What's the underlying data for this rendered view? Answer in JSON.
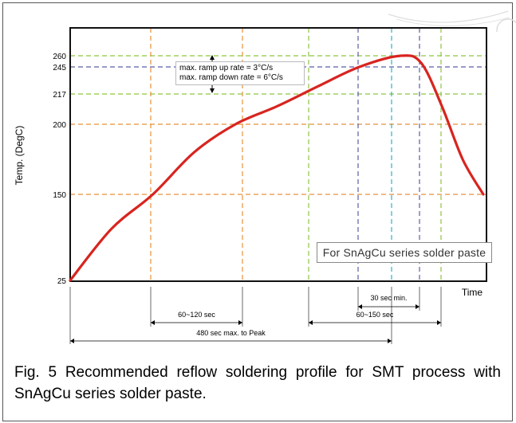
{
  "chart_data": {
    "type": "line",
    "ylabel": "Temp. (DegC)",
    "xlabel": "Time",
    "yticks": [
      25,
      150,
      200,
      217,
      245,
      260
    ],
    "ylim": [
      25,
      265
    ],
    "grid": true,
    "series": [
      {
        "values": [
          {
            "t": 0,
            "temp": 25
          },
          {
            "t": 60,
            "temp": 100
          },
          {
            "t": 120,
            "temp": 150
          },
          {
            "t": 180,
            "temp": 180
          },
          {
            "t": 240,
            "temp": 200
          },
          {
            "t": 300,
            "temp": 210
          },
          {
            "t": 360,
            "temp": 225
          },
          {
            "t": 420,
            "temp": 245
          },
          {
            "t": 480,
            "temp": 260
          },
          {
            "t": 510,
            "temp": 250
          },
          {
            "t": 540,
            "temp": 210
          },
          {
            "t": 570,
            "temp": 175
          },
          {
            "t": 600,
            "temp": 150
          }
        ]
      }
    ],
    "annotations": {
      "ramp_up": "max. ramp up rate = 3°C/s",
      "ramp_down": "max. ramp down rate = 6°C/s",
      "series_note": "For SnAgCu series solder paste",
      "interval_60_120": "60~120 sec",
      "interval_60_150": "60~150 sec",
      "interval_30": "30 sec min.",
      "interval_480": "480 sec max. to Peak"
    },
    "reference_lines": {
      "vertical_colors": {
        "orange": "#e8913a",
        "green": "#8cc63f",
        "blue": "#5b5ea6",
        "cyan": "#2bb3c0"
      },
      "curve_color": "#d8241f"
    }
  },
  "caption": "Fig. 5 Recommended reflow soldering profile for SMT process with SnAgCu series solder paste."
}
